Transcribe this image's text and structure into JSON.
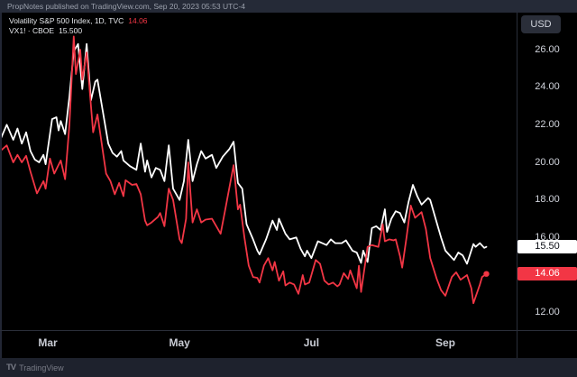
{
  "header": {
    "attribution": "PropNotes published on TradingView.com, Sep 20, 2023 05:53 UTC-4"
  },
  "legend": {
    "series1": {
      "title": "Volatility S&P 500 Index, 1D, TVC",
      "value": "14.06"
    },
    "series2": {
      "title": "VX1! · CBOE",
      "value": "15.500"
    }
  },
  "axis": {
    "currency_label": "USD",
    "y_ticks": [
      "26.00",
      "24.00",
      "22.00",
      "20.00",
      "18.00",
      "16.00",
      "12.00"
    ],
    "x_ticks": [
      {
        "label": "Mar",
        "date": "2023-03-01"
      },
      {
        "label": "May",
        "date": "2023-05-01"
      },
      {
        "label": "Jul",
        "date": "2023-07-01"
      },
      {
        "label": "Sep",
        "date": "2023-09-01"
      }
    ]
  },
  "price_tags": [
    {
      "id": "vx1-last-price",
      "label": "15.50",
      "value": 15.5,
      "bg": "#ffffff",
      "fg": "#0c0e15"
    },
    {
      "id": "vix-last-price",
      "label": "14.06",
      "value": 14.06,
      "bg": "#f23645",
      "fg": "#ffffff"
    }
  ],
  "footer": {
    "logo": "TV",
    "brand": "TradingView"
  },
  "colors": {
    "background": "#000000",
    "top_bar_bg": "#252a37",
    "footer_bg": "#1e222d",
    "separator": "#2a2e39",
    "axis_text": "#d1d4dc",
    "red": "#f23645",
    "white": "#ffffff"
  },
  "chart_data": {
    "type": "line",
    "title": "Volatility S&P 500 Index (VIX) with VX1! CBOE futures, 1D",
    "grid": false,
    "legend_position": "top-left",
    "x_axis": {
      "type": "time",
      "range": [
        "2023-02-07",
        "2023-09-20"
      ],
      "tick_labels": [
        "Mar",
        "May",
        "Jul",
        "Sep"
      ]
    },
    "y_axis": {
      "currency": "USD",
      "visible_range": [
        11.1,
        28.0
      ],
      "tick_step": 2,
      "visible_tick_values": [
        26,
        24,
        22,
        20,
        18,
        16,
        12
      ]
    },
    "series": [
      {
        "id": "vix",
        "name": "Volatility S&P 500 Index, 1D, TVC",
        "color": "#f23645",
        "last_value": 14.06,
        "end_dot": true,
        "points": [
          [
            "2023-02-07",
            20.6
          ],
          [
            "2023-02-10",
            20.9
          ],
          [
            "2023-02-13",
            20.0
          ],
          [
            "2023-02-15",
            20.4
          ],
          [
            "2023-02-17",
            20.0
          ],
          [
            "2023-02-19",
            20.35
          ],
          [
            "2023-02-21",
            19.5
          ],
          [
            "2023-02-24",
            18.35
          ],
          [
            "2023-02-27",
            19.0
          ],
          [
            "2023-02-28",
            18.6
          ],
          [
            "2023-03-02",
            20.2
          ],
          [
            "2023-03-04",
            19.4
          ],
          [
            "2023-03-07",
            20.1
          ],
          [
            "2023-03-09",
            19.1
          ],
          [
            "2023-03-11",
            22.0
          ],
          [
            "2023-03-13",
            26.7
          ],
          [
            "2023-03-14",
            24.7
          ],
          [
            "2023-03-16",
            26.0
          ],
          [
            "2023-03-17",
            24.4
          ],
          [
            "2023-03-19",
            25.85
          ],
          [
            "2023-03-21",
            23.0
          ],
          [
            "2023-03-22",
            21.6
          ],
          [
            "2023-03-24",
            22.55
          ],
          [
            "2023-03-28",
            19.4
          ],
          [
            "2023-03-30",
            19.0
          ],
          [
            "2023-04-01",
            18.3
          ],
          [
            "2023-04-03",
            18.9
          ],
          [
            "2023-04-05",
            18.2
          ],
          [
            "2023-04-06",
            19.05
          ],
          [
            "2023-04-09",
            18.8
          ],
          [
            "2023-04-11",
            18.85
          ],
          [
            "2023-04-13",
            18.3
          ],
          [
            "2023-04-15",
            16.9
          ],
          [
            "2023-04-16",
            16.65
          ],
          [
            "2023-04-18",
            16.8
          ],
          [
            "2023-04-21",
            17.1
          ],
          [
            "2023-04-22",
            17.3
          ],
          [
            "2023-04-24",
            16.6
          ],
          [
            "2023-04-26",
            18.6
          ],
          [
            "2023-04-28",
            18.0
          ],
          [
            "2023-05-01",
            15.9
          ],
          [
            "2023-05-02",
            15.7
          ],
          [
            "2023-05-04",
            17.0
          ],
          [
            "2023-05-05",
            20.0
          ],
          [
            "2023-05-07",
            16.8
          ],
          [
            "2023-05-09",
            17.5
          ],
          [
            "2023-05-11",
            16.8
          ],
          [
            "2023-05-13",
            16.95
          ],
          [
            "2023-05-16",
            17.0
          ],
          [
            "2023-05-18",
            16.6
          ],
          [
            "2023-05-20",
            16.2
          ],
          [
            "2023-05-22",
            17.4
          ],
          [
            "2023-05-26",
            19.85
          ],
          [
            "2023-05-28",
            17.5
          ],
          [
            "2023-05-29",
            17.75
          ],
          [
            "2023-05-31",
            16.0
          ],
          [
            "2023-06-02",
            14.5
          ],
          [
            "2023-06-04",
            13.9
          ],
          [
            "2023-06-06",
            13.85
          ],
          [
            "2023-06-07",
            13.6
          ],
          [
            "2023-06-09",
            14.5
          ],
          [
            "2023-06-11",
            14.9
          ],
          [
            "2023-06-13",
            14.25
          ],
          [
            "2023-06-14",
            14.7
          ],
          [
            "2023-06-16",
            13.7
          ],
          [
            "2023-06-18",
            14.2
          ],
          [
            "2023-06-19",
            13.45
          ],
          [
            "2023-06-21",
            13.6
          ],
          [
            "2023-06-23",
            13.5
          ],
          [
            "2023-06-25",
            13.0
          ],
          [
            "2023-06-27",
            14.0
          ],
          [
            "2023-06-28",
            13.5
          ],
          [
            "2023-06-30",
            13.6
          ],
          [
            "2023-07-03",
            14.8
          ],
          [
            "2023-07-05",
            14.6
          ],
          [
            "2023-07-07",
            13.7
          ],
          [
            "2023-07-09",
            13.5
          ],
          [
            "2023-07-11",
            13.6
          ],
          [
            "2023-07-13",
            13.4
          ],
          [
            "2023-07-14",
            13.5
          ],
          [
            "2023-07-16",
            14.1
          ],
          [
            "2023-07-18",
            13.8
          ],
          [
            "2023-07-19",
            14.25
          ],
          [
            "2023-07-22",
            13.3
          ],
          [
            "2023-07-23",
            14.5
          ],
          [
            "2023-07-24",
            13.1
          ],
          [
            "2023-07-27",
            15.5
          ],
          [
            "2023-07-29",
            15.6
          ],
          [
            "2023-08-01",
            15.5
          ],
          [
            "2023-08-03",
            16.7
          ],
          [
            "2023-08-04",
            15.8
          ],
          [
            "2023-08-06",
            15.9
          ],
          [
            "2023-08-08",
            15.85
          ],
          [
            "2023-08-09",
            15.9
          ],
          [
            "2023-08-11",
            15.0
          ],
          [
            "2023-08-12",
            14.4
          ],
          [
            "2023-08-14",
            16.0
          ],
          [
            "2023-08-16",
            17.7
          ],
          [
            "2023-08-18",
            17.05
          ],
          [
            "2023-08-21",
            17.35
          ],
          [
            "2023-08-23",
            16.45
          ],
          [
            "2023-08-25",
            14.9
          ],
          [
            "2023-08-28",
            13.8
          ],
          [
            "2023-08-30",
            13.2
          ],
          [
            "2023-09-01",
            12.9
          ],
          [
            "2023-09-04",
            13.9
          ],
          [
            "2023-09-06",
            14.15
          ],
          [
            "2023-09-08",
            13.75
          ],
          [
            "2023-09-11",
            14.0
          ],
          [
            "2023-09-13",
            13.3
          ],
          [
            "2023-09-14",
            12.5
          ],
          [
            "2023-09-17",
            13.5
          ],
          [
            "2023-09-18",
            13.9
          ],
          [
            "2023-09-20",
            14.06
          ]
        ]
      },
      {
        "id": "vx1",
        "name": "VX1! · CBOE",
        "color": "#ffffff",
        "last_value": 15.5,
        "end_dot": false,
        "points": [
          [
            "2023-02-07",
            21.2
          ],
          [
            "2023-02-10",
            22.0
          ],
          [
            "2023-02-13",
            21.2
          ],
          [
            "2023-02-15",
            21.8
          ],
          [
            "2023-02-17",
            21.0
          ],
          [
            "2023-02-19",
            21.6
          ],
          [
            "2023-02-21",
            20.6
          ],
          [
            "2023-02-23",
            20.15
          ],
          [
            "2023-02-25",
            20.0
          ],
          [
            "2023-02-27",
            20.4
          ],
          [
            "2023-02-28",
            19.9
          ],
          [
            "2023-03-03",
            22.3
          ],
          [
            "2023-03-05",
            22.4
          ],
          [
            "2023-03-06",
            21.7
          ],
          [
            "2023-03-07",
            22.2
          ],
          [
            "2023-03-09",
            21.5
          ],
          [
            "2023-03-11",
            23.5
          ],
          [
            "2023-03-13",
            25.9
          ],
          [
            "2023-03-15",
            26.3
          ],
          [
            "2023-03-17",
            23.9
          ],
          [
            "2023-03-19",
            26.3
          ],
          [
            "2023-03-21",
            23.3
          ],
          [
            "2023-03-23",
            24.3
          ],
          [
            "2023-03-24",
            24.4
          ],
          [
            "2023-03-29",
            21.0
          ],
          [
            "2023-03-31",
            20.5
          ],
          [
            "2023-04-02",
            20.3
          ],
          [
            "2023-04-04",
            20.6
          ],
          [
            "2023-04-05",
            20.1
          ],
          [
            "2023-04-08",
            19.8
          ],
          [
            "2023-04-11",
            19.6
          ],
          [
            "2023-04-13",
            21.0
          ],
          [
            "2023-04-15",
            19.5
          ],
          [
            "2023-04-16",
            20.1
          ],
          [
            "2023-04-18",
            19.2
          ],
          [
            "2023-04-20",
            19.7
          ],
          [
            "2023-04-22",
            19.6
          ],
          [
            "2023-04-24",
            19.0
          ],
          [
            "2023-04-26",
            20.9
          ],
          [
            "2023-04-28",
            18.6
          ],
          [
            "2023-05-01",
            18.0
          ],
          [
            "2023-05-03",
            19.0
          ],
          [
            "2023-05-05",
            21.2
          ],
          [
            "2023-05-07",
            19.0
          ],
          [
            "2023-05-09",
            19.9
          ],
          [
            "2023-05-11",
            20.6
          ],
          [
            "2023-05-13",
            20.2
          ],
          [
            "2023-05-16",
            20.4
          ],
          [
            "2023-05-18",
            19.7
          ],
          [
            "2023-05-21",
            20.3
          ],
          [
            "2023-05-24",
            20.7
          ],
          [
            "2023-05-26",
            21.1
          ],
          [
            "2023-05-28",
            18.9
          ],
          [
            "2023-05-30",
            18.6
          ],
          [
            "2023-06-01",
            16.7
          ],
          [
            "2023-06-04",
            15.9
          ],
          [
            "2023-06-06",
            15.3
          ],
          [
            "2023-06-07",
            15.1
          ],
          [
            "2023-06-10",
            15.9
          ],
          [
            "2023-06-13",
            16.9
          ],
          [
            "2023-06-15",
            16.4
          ],
          [
            "2023-06-16",
            17.0
          ],
          [
            "2023-06-19",
            16.2
          ],
          [
            "2023-06-21",
            15.9
          ],
          [
            "2023-06-24",
            16.0
          ],
          [
            "2023-06-26",
            15.4
          ],
          [
            "2023-06-28",
            15.0
          ],
          [
            "2023-06-29",
            15.3
          ],
          [
            "2023-07-01",
            14.9
          ],
          [
            "2023-07-04",
            15.8
          ],
          [
            "2023-07-06",
            15.7
          ],
          [
            "2023-07-08",
            15.6
          ],
          [
            "2023-07-10",
            15.9
          ],
          [
            "2023-07-12",
            15.7
          ],
          [
            "2023-07-15",
            15.7
          ],
          [
            "2023-07-17",
            15.85
          ],
          [
            "2023-07-20",
            15.3
          ],
          [
            "2023-07-22",
            15.2
          ],
          [
            "2023-07-24",
            14.65
          ],
          [
            "2023-07-25",
            15.3
          ],
          [
            "2023-07-27",
            14.7
          ],
          [
            "2023-07-29",
            16.5
          ],
          [
            "2023-07-31",
            16.6
          ],
          [
            "2023-08-02",
            16.4
          ],
          [
            "2023-08-04",
            17.5
          ],
          [
            "2023-08-05",
            16.3
          ],
          [
            "2023-08-07",
            17.0
          ],
          [
            "2023-08-09",
            17.4
          ],
          [
            "2023-08-11",
            17.3
          ],
          [
            "2023-08-13",
            16.8
          ],
          [
            "2023-08-15",
            17.9
          ],
          [
            "2023-08-17",
            18.8
          ],
          [
            "2023-08-19",
            18.2
          ],
          [
            "2023-08-21",
            17.75
          ],
          [
            "2023-08-24",
            18.1
          ],
          [
            "2023-08-25",
            18.0
          ],
          [
            "2023-08-28",
            16.8
          ],
          [
            "2023-08-30",
            16.0
          ],
          [
            "2023-09-01",
            15.3
          ],
          [
            "2023-09-03",
            15.05
          ],
          [
            "2023-09-05",
            14.8
          ],
          [
            "2023-09-07",
            15.2
          ],
          [
            "2023-09-09",
            15.05
          ],
          [
            "2023-09-11",
            14.6
          ],
          [
            "2023-09-14",
            15.65
          ],
          [
            "2023-09-15",
            15.5
          ],
          [
            "2023-09-17",
            15.7
          ],
          [
            "2023-09-19",
            15.45
          ],
          [
            "2023-09-20",
            15.5
          ]
        ]
      }
    ]
  }
}
